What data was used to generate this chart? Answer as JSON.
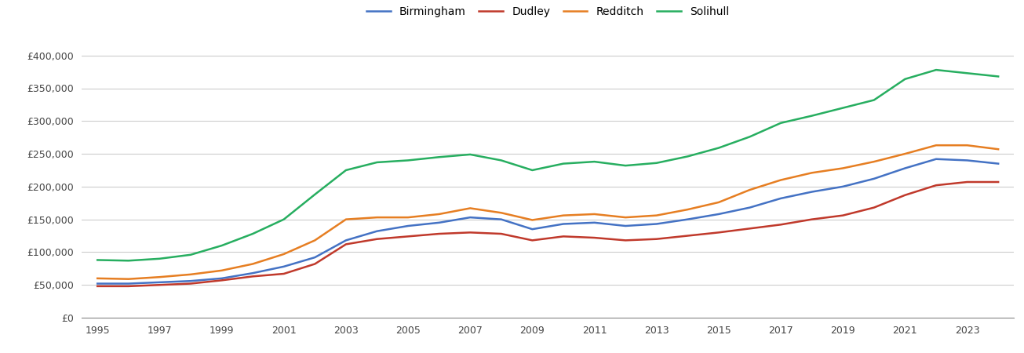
{
  "years": [
    1995,
    1996,
    1997,
    1998,
    1999,
    2000,
    2001,
    2002,
    2003,
    2004,
    2005,
    2006,
    2007,
    2008,
    2009,
    2010,
    2011,
    2012,
    2013,
    2014,
    2015,
    2016,
    2017,
    2018,
    2019,
    2020,
    2021,
    2022,
    2023,
    2024
  ],
  "Birmingham": [
    52000,
    52000,
    54000,
    56000,
    60000,
    68000,
    78000,
    92000,
    118000,
    132000,
    140000,
    145000,
    153000,
    150000,
    135000,
    143000,
    145000,
    140000,
    143000,
    150000,
    158000,
    168000,
    182000,
    192000,
    200000,
    212000,
    228000,
    242000,
    240000,
    235000
  ],
  "Dudley": [
    48000,
    48000,
    50000,
    52000,
    57000,
    63000,
    67000,
    82000,
    112000,
    120000,
    124000,
    128000,
    130000,
    128000,
    118000,
    124000,
    122000,
    118000,
    120000,
    125000,
    130000,
    136000,
    142000,
    150000,
    156000,
    168000,
    187000,
    202000,
    207000,
    207000
  ],
  "Redditch": [
    60000,
    59000,
    62000,
    66000,
    72000,
    82000,
    97000,
    118000,
    150000,
    153000,
    153000,
    158000,
    167000,
    160000,
    149000,
    156000,
    158000,
    153000,
    156000,
    165000,
    176000,
    195000,
    210000,
    221000,
    228000,
    238000,
    250000,
    263000,
    263000,
    257000
  ],
  "Solihull": [
    88000,
    87000,
    90000,
    96000,
    110000,
    128000,
    150000,
    188000,
    225000,
    237000,
    240000,
    245000,
    249000,
    240000,
    225000,
    235000,
    238000,
    232000,
    236000,
    246000,
    259000,
    276000,
    297000,
    308000,
    320000,
    332000,
    364000,
    378000,
    373000,
    368000
  ],
  "colors": {
    "Birmingham": "#4472c4",
    "Dudley": "#c0392b",
    "Redditch": "#e67e22",
    "Solihull": "#27ae60"
  },
  "ylim": [
    0,
    420000
  ],
  "yticks": [
    0,
    50000,
    100000,
    150000,
    200000,
    250000,
    300000,
    350000,
    400000
  ],
  "xticks": [
    1995,
    1997,
    1999,
    2001,
    2003,
    2005,
    2007,
    2009,
    2011,
    2013,
    2015,
    2017,
    2019,
    2021,
    2023
  ],
  "xlim": [
    1994.5,
    2024.5
  ],
  "background_color": "#ffffff",
  "grid_color": "#cccccc",
  "line_width": 1.8,
  "legend_labels": [
    "Birmingham",
    "Dudley",
    "Redditch",
    "Solihull"
  ]
}
